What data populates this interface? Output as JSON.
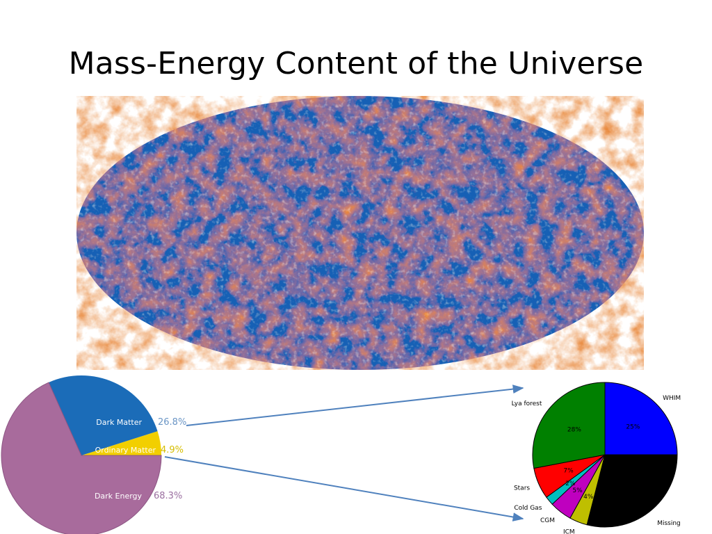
{
  "slide": {
    "title": "Mass-Energy Content of the Universe"
  },
  "colors": {
    "dark_energy": "#a86b9c",
    "dark_matter": "#1b6cb8",
    "ordinary_matter": "#f2cf00",
    "dark_matter_label": "#6a95c5",
    "ordinary_matter_label": "#d5bd00",
    "dark_energy_label": "#9b6fa0",
    "whim": "#0000ff",
    "missing": "#000000",
    "icm": "#bfbf00",
    "cgm": "#bf00bf",
    "cold_gas": "#00bfbf",
    "stars": "#ff0000",
    "lya_forest": "#008000",
    "arrow": "#4f81bd",
    "cmb_blue": "#1560b5",
    "cmb_orange": "#e8873a"
  },
  "chart_data": [
    {
      "type": "pie",
      "slices": [
        {
          "name": "Dark Energy",
          "value": 68.3,
          "label": "68.3%"
        },
        {
          "name": "Dark Matter",
          "value": 26.8,
          "label": "26.8%"
        },
        {
          "name": "Ordinary Matter",
          "value": 4.9,
          "label": "4.9%"
        }
      ]
    },
    {
      "type": "pie",
      "slices": [
        {
          "name": "WHIM",
          "value": 25,
          "label": "25%"
        },
        {
          "name": "Missing",
          "value": 29,
          "label": ""
        },
        {
          "name": "ICM",
          "value": 4,
          "label": "4%"
        },
        {
          "name": "CGM",
          "value": 5,
          "label": "5%"
        },
        {
          "name": "Cold Gas",
          "value": 2,
          "label": "2%"
        },
        {
          "name": "Stars",
          "value": 7,
          "label": "7%"
        },
        {
          "name": "Lya forest",
          "value": 28,
          "label": "28%"
        }
      ]
    }
  ]
}
